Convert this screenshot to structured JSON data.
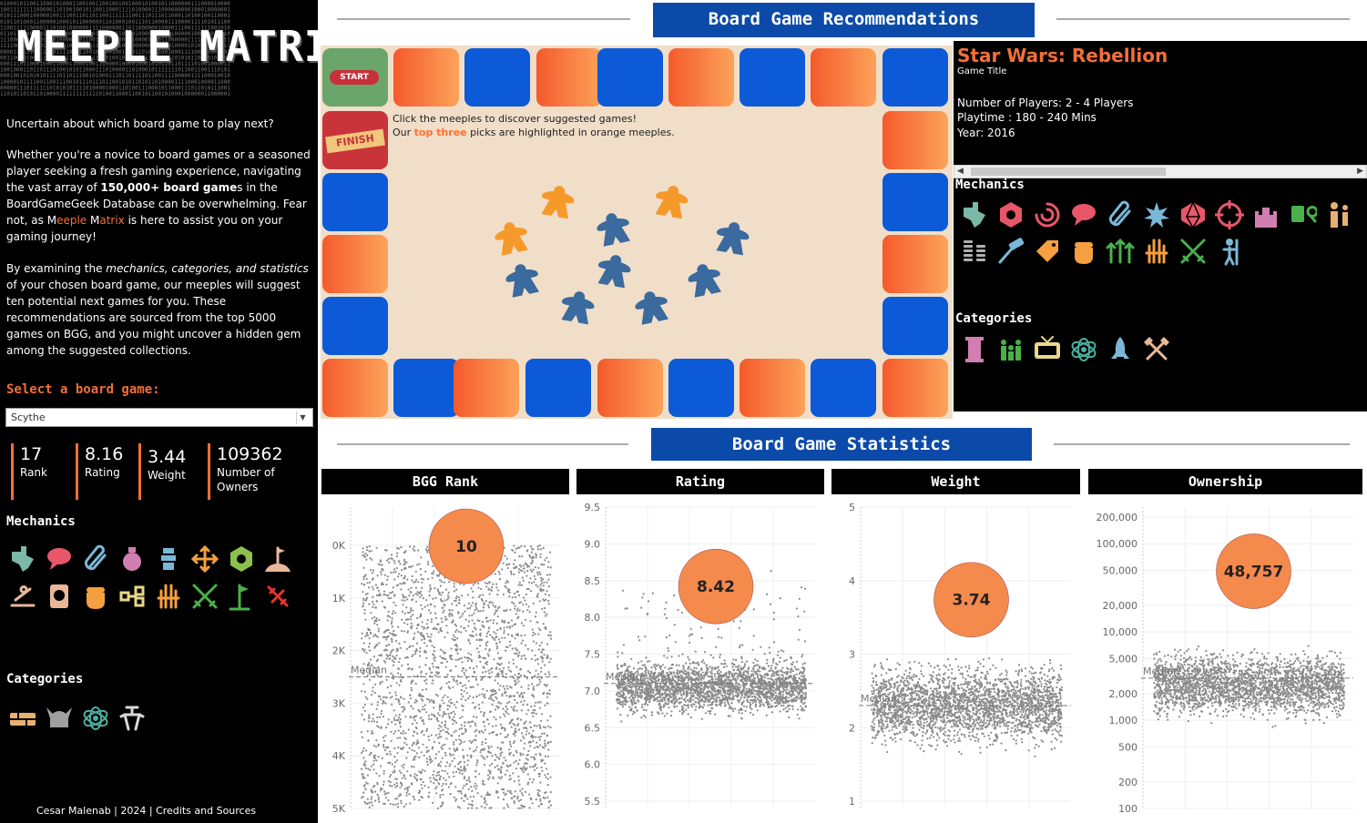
{
  "sidebar": {
    "logo_text": "MEEPLE MATRIX",
    "intro_q": "Uncertain about which board game to play next?",
    "intro_p1_a": "Whether you're a novice to board games or a seasoned player seeking a fresh gaming experience, navigating the vast array of ",
    "intro_p1_bold": "150,000+ board game",
    "intro_p1_b": "s in the BoardGameGeek Database can be overwhelming. Fear not, as M",
    "intro_p1_brand1": "eeple",
    "intro_p1_c": " M",
    "intro_p1_brand2": "atrix",
    "intro_p1_d": " is here to assist you on your gaming journey!",
    "intro_p2_a": "By examining the ",
    "intro_p2_ital": "mechanics, categories, and statistics",
    "intro_p2_b": " of your chosen board game, our meeples will suggest ten potential next games for you. These recommendations are sourced from the top 5000 games on BGG, and you might uncover a hidden gem among the suggested collections.",
    "select_label": "Select a board game:",
    "selected_game": "Scythe",
    "kpis": [
      {
        "value": "17",
        "label": "Rank"
      },
      {
        "value": "8.16",
        "label": "Rating"
      },
      {
        "value": "3.44",
        "label": "Weight"
      },
      {
        "value": "109362",
        "label": "Number of Owners"
      }
    ],
    "mechanics_h": "Mechanics",
    "categories_h": "Categories",
    "mechanics_icons": [
      {
        "name": "texas-map-icon",
        "color": "#7ab8a8"
      },
      {
        "name": "speech-bubble-icon",
        "color": "#e8566a"
      },
      {
        "name": "paperclip-icon",
        "color": "#7ab8d8"
      },
      {
        "name": "money-bag-icon",
        "color": "#d07fb0"
      },
      {
        "name": "stack-person-icon",
        "color": "#7ab8d8"
      },
      {
        "name": "move-arrows-icon",
        "color": "#f5a040"
      },
      {
        "name": "hex-grid-icon",
        "color": "#8cc04a"
      },
      {
        "name": "flag-hill-icon",
        "color": "#e8b898"
      },
      {
        "name": "rowing-icon",
        "color": "#e8b898"
      },
      {
        "name": "card-face-icon",
        "color": "#e8b898"
      },
      {
        "name": "fist-icon",
        "color": "#f5a040"
      },
      {
        "name": "flowchart-icon",
        "color": "#e8d888"
      },
      {
        "name": "hands-icon",
        "color": "#f5a040"
      },
      {
        "name": "crossed-swords-icon",
        "color": "#4ab04a"
      },
      {
        "name": "pin-flag-icon",
        "color": "#4ab04a"
      },
      {
        "name": "chain-icon",
        "color": "#e8352e"
      }
    ],
    "category_icons": [
      {
        "name": "bricks-icon",
        "color": "#e8b070"
      },
      {
        "name": "viking-helmet-icon",
        "color": "#a0a0a0"
      },
      {
        "name": "atom-icon",
        "color": "#4ab0a0"
      },
      {
        "name": "mech-icon",
        "color": "#d8d8d8"
      }
    ],
    "credits": "Cesar Malenab | 2024 |  Credits and Sources"
  },
  "recommendations": {
    "title": "Board Game Recommendations",
    "start_label": "START",
    "finish_label": "FINISH",
    "msg_line1": "Click the meeples to discover suggested games!",
    "msg_line2_a": "Our ",
    "msg_line2_b": "top three",
    "msg_line2_c": " picks are highlighted in orange meeples.",
    "meeples": [
      {
        "name": "meeple-top-1",
        "color": "#f59a2a"
      },
      {
        "name": "meeple-top-2",
        "color": "#f59a2a"
      },
      {
        "name": "meeple-top-3",
        "color": "#f59a2a"
      },
      {
        "name": "meeple-4",
        "color": "#3a6a9e"
      },
      {
        "name": "meeple-5",
        "color": "#3a6a9e"
      },
      {
        "name": "meeple-6",
        "color": "#3a6a9e"
      },
      {
        "name": "meeple-7",
        "color": "#3a6a9e"
      },
      {
        "name": "meeple-8",
        "color": "#3a6a9e"
      },
      {
        "name": "meeple-9",
        "color": "#3a6a9e"
      },
      {
        "name": "meeple-10",
        "color": "#3a6a9e"
      }
    ]
  },
  "detail": {
    "title": "Star Wars: Rebellion",
    "subtitle": "Game Title",
    "players": "Number of Players: 2  -  4 Players",
    "playtime": "Playtime : 180  - 240 Mins",
    "year": "Year: 2016",
    "mechanics_h": "Mechanics",
    "categories_h": "Categories",
    "mechanics_icons": [
      {
        "name": "texas-map-icon",
        "color": "#7ab8a8"
      },
      {
        "name": "hex-grid-icon",
        "color": "#e8566a"
      },
      {
        "name": "swirl-icon",
        "color": "#e8566a"
      },
      {
        "name": "speech-bubble-icon",
        "color": "#e8566a"
      },
      {
        "name": "paperclip-icon",
        "color": "#7ab8d8"
      },
      {
        "name": "burst-icon",
        "color": "#7ab8d8"
      },
      {
        "name": "d20-dice-icon",
        "color": "#e8566a"
      },
      {
        "name": "target-dice-icon",
        "color": "#e8566a"
      },
      {
        "name": "castle-icon",
        "color": "#d07fb0"
      },
      {
        "name": "magnifier-cards-icon",
        "color": "#4ab04a"
      },
      {
        "name": "persons-icon",
        "color": "#e8b070"
      },
      {
        "name": "coin-stacks-icon",
        "color": "#b0b0b0"
      },
      {
        "name": "hammer-icon",
        "color": "#7ab8d8"
      },
      {
        "name": "price-tag-icon",
        "color": "#f5a040"
      },
      {
        "name": "fist-icon",
        "color": "#f5a040"
      },
      {
        "name": "up-arrows-icon",
        "color": "#4ab04a"
      },
      {
        "name": "hands-icon",
        "color": "#f5a040"
      },
      {
        "name": "crossed-swords-icon",
        "color": "#4ab04a"
      },
      {
        "name": "farmer-icon",
        "color": "#7ab8d8"
      }
    ],
    "category_icons": [
      {
        "name": "pillar-icon",
        "color": "#d07fb0"
      },
      {
        "name": "family-icon",
        "color": "#4ab04a"
      },
      {
        "name": "tv-icon",
        "color": "#e8d888"
      },
      {
        "name": "atom-icon",
        "color": "#4ab0a0"
      },
      {
        "name": "rocket-icon",
        "color": "#7ab8d8"
      },
      {
        "name": "crossed-axes-icon",
        "color": "#e8b898"
      }
    ]
  },
  "statistics": {
    "title": "Board Game Statistics",
    "median_label": "Median",
    "bubble_color": "#f58a4d"
  },
  "chart_data": [
    {
      "type": "scatter",
      "title": "BGG Rank",
      "y_ticks": [
        "0K",
        "1K",
        "2K",
        "3K",
        "4K",
        "5K"
      ],
      "ylim": [
        0,
        5000
      ],
      "y_reversed": true,
      "median": 2500,
      "highlight_value": 10,
      "highlight_label": "10"
    },
    {
      "type": "scatter",
      "title": "Rating",
      "y_ticks": [
        "5.5",
        "6.0",
        "6.5",
        "7.0",
        "7.5",
        "8.0",
        "8.5",
        "9.0",
        "9.5"
      ],
      "ylim": [
        5.5,
        9.5
      ],
      "median": 7.1,
      "highlight_value": 8.42,
      "highlight_label": "8.42"
    },
    {
      "type": "scatter",
      "title": "Weight",
      "y_ticks": [
        "1",
        "2",
        "3",
        "4",
        "5"
      ],
      "ylim": [
        1,
        5
      ],
      "median": 2.3,
      "highlight_value": 3.74,
      "highlight_label": "3.74"
    },
    {
      "type": "scatter",
      "title": "Ownership",
      "log_scale": true,
      "y_ticks": [
        "100",
        "200",
        "500",
        "1,000",
        "2,000",
        "5,000",
        "10,000",
        "20,000",
        "50,000",
        "100,000",
        "200,000"
      ],
      "y_tick_values": [
        100,
        200,
        500,
        1000,
        2000,
        5000,
        10000,
        20000,
        50000,
        100000,
        200000
      ],
      "median": 3000,
      "highlight_value": 48757,
      "highlight_label": "48,757"
    }
  ]
}
